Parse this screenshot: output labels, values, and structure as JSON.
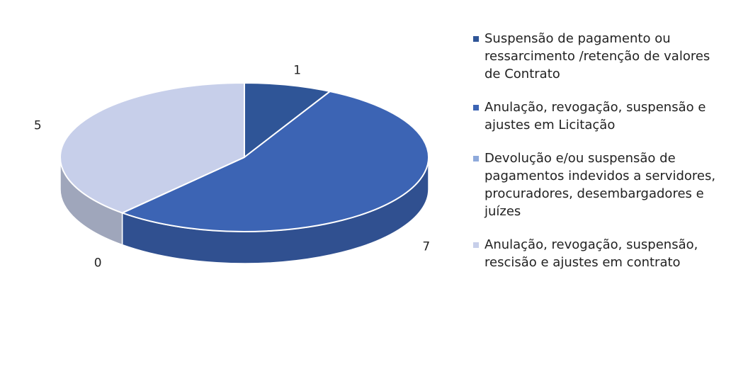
{
  "chart_data": {
    "type": "pie",
    "categories": [
      "Suspensão de pagamento ou ressarcimento /retenção de valores de Contrato",
      "Anulação, revogação, suspensão e ajustes em Licitação",
      "Devolução e/ou suspensão de pagamentos indevidos a servidores, procuradores, desembargadores e juízes",
      "Anulação, revogação, suspensão, rescisão e ajustes em contrato"
    ],
    "values": [
      1,
      7,
      0,
      5
    ],
    "colors": [
      "#2f5597",
      "#3c64b4",
      "#8ea9db",
      "#c7cfea"
    ],
    "legend": "right"
  }
}
